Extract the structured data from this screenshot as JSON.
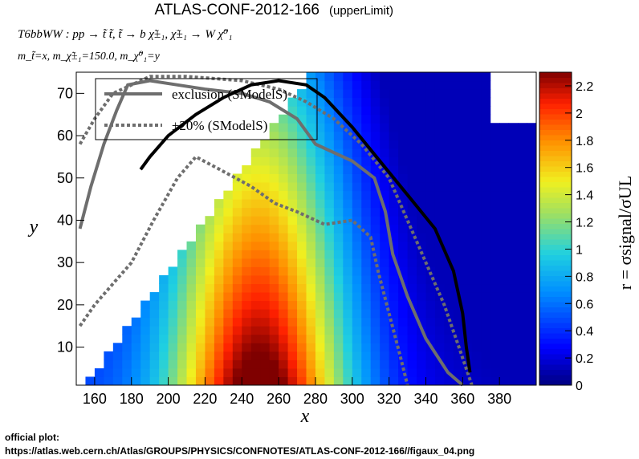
{
  "chart_data": {
    "type": "heatmap",
    "title": "ATLAS-CONF-2012-166",
    "title_suffix": "(upperLimit)",
    "process_line": "T6bbWW : pp → t̃ t̃, t̃ → b χ̃±₁, χ̃±₁ → W χ̃⁰₁",
    "mass_line": "m_t̃=x, m_χ̃±₁=150.0, m_χ̃⁰₁=y",
    "xlabel": "x",
    "ylabel": "y",
    "zlabel": "r = σsignal/σUL",
    "xlim": [
      150,
      400
    ],
    "ylim": [
      1,
      75
    ],
    "zlim": [
      0,
      2.3
    ],
    "x_ticks": [
      160,
      180,
      200,
      220,
      240,
      260,
      280,
      300,
      320,
      340,
      360,
      380
    ],
    "y_ticks": [
      10,
      20,
      30,
      40,
      50,
      60,
      70
    ],
    "z_ticks": [
      0,
      0.2,
      0.4,
      0.6,
      0.8,
      1,
      1.2,
      1.4,
      1.6,
      1.8,
      2,
      2.2
    ],
    "legend": {
      "placement": "top-left",
      "entries": [
        {
          "label": "exclusion (SModelS)",
          "style": "solid",
          "color": "#6e6e6e"
        },
        {
          "label": "±20% (SModelS)",
          "style": "dotted",
          "color": "#6e6e6e"
        }
      ]
    },
    "curves": {
      "official": [
        [
          185,
          52
        ],
        [
          190,
          55
        ],
        [
          200,
          60
        ],
        [
          215,
          65
        ],
        [
          230,
          69
        ],
        [
          245,
          72
        ],
        [
          260,
          73
        ],
        [
          275,
          72
        ],
        [
          285,
          69
        ],
        [
          300,
          62
        ],
        [
          315,
          54
        ],
        [
          330,
          46
        ],
        [
          345,
          38
        ],
        [
          355,
          28
        ],
        [
          360,
          18
        ],
        [
          362,
          10
        ],
        [
          364,
          4
        ]
      ],
      "exclusion": [
        [
          152,
          38
        ],
        [
          158,
          48
        ],
        [
          165,
          58
        ],
        [
          172,
          66
        ],
        [
          178,
          72
        ],
        [
          190,
          73
        ],
        [
          205,
          72
        ],
        [
          220,
          71
        ],
        [
          240,
          70
        ],
        [
          255,
          68
        ],
        [
          270,
          64
        ],
        [
          280,
          58
        ],
        [
          300,
          54
        ],
        [
          312,
          50
        ],
        [
          318,
          42
        ],
        [
          322,
          32
        ],
        [
          330,
          22
        ],
        [
          340,
          12
        ],
        [
          352,
          4
        ],
        [
          360,
          1
        ]
      ],
      "band_lo": [
        [
          152,
          15
        ],
        [
          160,
          20
        ],
        [
          170,
          25
        ],
        [
          180,
          30
        ],
        [
          192,
          40
        ],
        [
          205,
          50
        ],
        [
          215,
          55
        ],
        [
          228,
          52
        ],
        [
          245,
          48
        ],
        [
          258,
          44
        ],
        [
          270,
          42
        ],
        [
          285,
          39
        ],
        [
          300,
          40
        ],
        [
          310,
          36
        ],
        [
          314,
          28
        ],
        [
          320,
          18
        ],
        [
          326,
          8
        ],
        [
          330,
          1
        ]
      ],
      "band_hi": [
        [
          152,
          58
        ],
        [
          160,
          64
        ],
        [
          170,
          70
        ],
        [
          190,
          74
        ],
        [
          210,
          74
        ],
        [
          240,
          73
        ],
        [
          260,
          71
        ],
        [
          275,
          68
        ],
        [
          290,
          64
        ],
        [
          305,
          58
        ],
        [
          320,
          50
        ],
        [
          330,
          40
        ],
        [
          340,
          30
        ],
        [
          350,
          20
        ],
        [
          358,
          10
        ],
        [
          365,
          1
        ]
      ]
    },
    "source_label": "official plot:",
    "source_url": "https://atlas.web.cern.ch/Atlas/GROUPS/PHYSICS/CONFNOTES/ATLAS-CONF-2012-166//figaux_04.png"
  }
}
